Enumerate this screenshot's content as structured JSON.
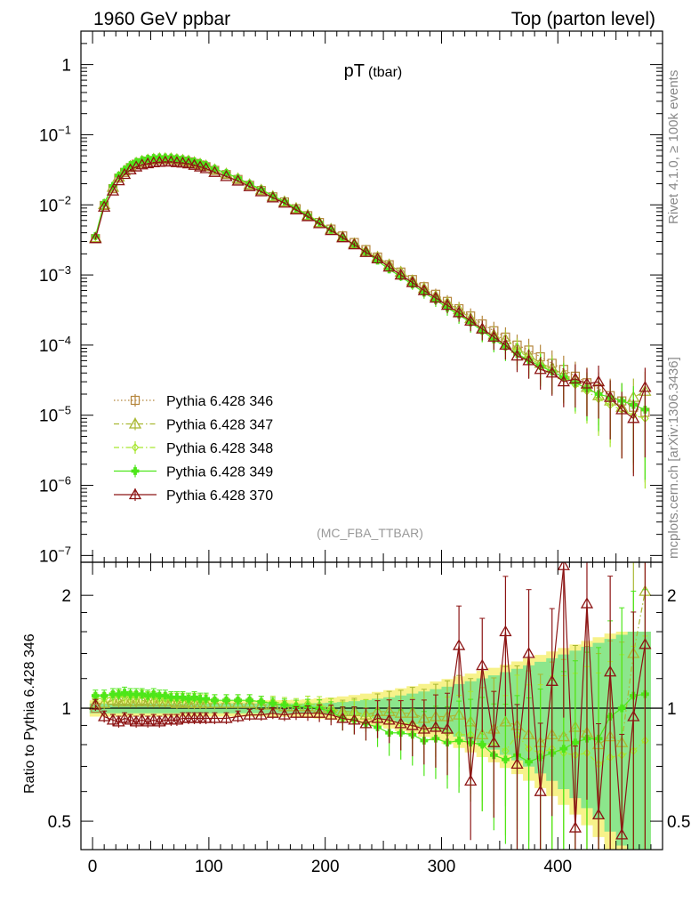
{
  "header": {
    "left": "1960 GeV ppbar",
    "right": "Top (parton level)"
  },
  "side_labels": {
    "rivet": "Rivet 4.1.0, ≥ 100k events",
    "mcplots": "mcplots.cern.ch [arXiv:1306.3436]"
  },
  "colors": {
    "s346": "#b5863d",
    "s347": "#a9b833",
    "s348": "#a6e62e",
    "s349": "#4de619",
    "s370": "#8c1414",
    "band_yellow": "#f7f28a",
    "band_green": "#8ce68c"
  },
  "chart_data": [
    {
      "type": "line",
      "panel": "main",
      "title": "pT",
      "title_sub": "(tbar)",
      "watermark": "(MC_FBA_TTBAR)",
      "xlabel": "",
      "ylabel": "",
      "xlim": [
        -10,
        490
      ],
      "yscale": "log",
      "ylim": [
        8e-08,
        3
      ],
      "ytick_labels": [
        {
          "base": "1",
          "exp": ""
        },
        {
          "base": "10",
          "exp": "−1"
        },
        {
          "base": "10",
          "exp": "−2"
        },
        {
          "base": "10",
          "exp": "−3"
        },
        {
          "base": "10",
          "exp": "−4"
        },
        {
          "base": "10",
          "exp": "−5"
        },
        {
          "base": "10",
          "exp": "−6"
        },
        {
          "base": "10",
          "exp": "−7"
        }
      ],
      "x": [
        2.5,
        10,
        17.5,
        22.5,
        27.5,
        32.5,
        37.5,
        42.5,
        47.5,
        52.5,
        57.5,
        62.5,
        67.5,
        72.5,
        77.5,
        82.5,
        87.5,
        92.5,
        97.5,
        105,
        115,
        125,
        135,
        145,
        155,
        165,
        175,
        185,
        195,
        205,
        215,
        225,
        235,
        245,
        255,
        265,
        275,
        285,
        295,
        305,
        315,
        325,
        335,
        345,
        355,
        365,
        375,
        385,
        395,
        405,
        415,
        425,
        435,
        445,
        455,
        465,
        475
      ],
      "series": [
        {
          "name": "Pythia 6.428 346",
          "marker": "square-open",
          "style": "dotted",
          "values": [
            0.0033,
            0.0098,
            0.017,
            0.024,
            0.029,
            0.034,
            0.038,
            0.04,
            0.042,
            0.043,
            0.044,
            0.044,
            0.044,
            0.043,
            0.042,
            0.041,
            0.039,
            0.037,
            0.035,
            0.031,
            0.027,
            0.023,
            0.019,
            0.016,
            0.013,
            0.011,
            0.0088,
            0.007,
            0.0056,
            0.0045,
            0.0036,
            0.0029,
            0.0023,
            0.0018,
            0.0014,
            0.0011,
            0.00086,
            0.00068,
            0.00053,
            0.00042,
            0.00033,
            0.00026,
            0.0002,
            0.00016,
            0.00013,
            0.0001,
            8.5e-05,
            6.8e-05,
            5.5e-05,
            4.5e-05,
            3.6e-05,
            2.9e-05,
            2.4e-05,
            1.9e-05,
            1.6e-05,
            1.3e-05,
            1.1e-05
          ]
        },
        {
          "name": "Pythia 6.428 347",
          "marker": "triangle-open",
          "style": "dashdot",
          "values": [
            0.0034,
            0.0101,
            0.0178,
            0.025,
            0.0305,
            0.0355,
            0.0395,
            0.042,
            0.0438,
            0.0449,
            0.0458,
            0.0458,
            0.0456,
            0.0445,
            0.0435,
            0.0423,
            0.0403,
            0.0382,
            0.0361,
            0.0318,
            0.0277,
            0.0236,
            0.0195,
            0.0163,
            0.0132,
            0.0111,
            0.0089,
            0.0071,
            0.0056,
            0.0045,
            0.0035,
            0.0028,
            0.0022,
            0.0018,
            0.0014,
            0.0011,
            0.00083,
            0.00064,
            0.0005,
            0.0004,
            0.00032,
            0.00024,
            0.00017,
            0.00014,
            0.00012,
            9e-05,
            7.2e-05,
            5.5e-05,
            4.7e-05,
            3.8e-05,
            3.2e-05,
            2.5e-05,
            1.9e-05,
            1.6e-05,
            1.3e-05,
            1.8e-05,
            2.2e-05
          ]
        },
        {
          "name": "Pythia 6.428 348",
          "marker": "diamond-open",
          "style": "dashdot",
          "values": [
            0.0035,
            0.0104,
            0.0182,
            0.0258,
            0.0313,
            0.0365,
            0.0405,
            0.043,
            0.0448,
            0.0459,
            0.0468,
            0.0468,
            0.0466,
            0.0455,
            0.0444,
            0.0432,
            0.0412,
            0.039,
            0.0368,
            0.0325,
            0.0283,
            0.0241,
            0.0199,
            0.0166,
            0.0135,
            0.0113,
            0.009,
            0.0072,
            0.0057,
            0.0045,
            0.0035,
            0.0028,
            0.0022,
            0.0017,
            0.0013,
            0.001,
            0.00078,
            0.0006,
            0.00047,
            0.00036,
            0.00028,
            0.00022,
            0.00016,
            0.00013,
            0.0001,
            8.5e-05,
            6.6e-05,
            5.2e-05,
            4.3e-05,
            3.4e-05,
            2.7e-05,
            2.2e-05,
            1.7e-05,
            1.4e-05,
            1.2e-05,
            1e-05,
            9e-06
          ]
        },
        {
          "name": "Pythia 6.428 349",
          "marker": "plus-filled",
          "style": "solid",
          "values": [
            0.0036,
            0.0106,
            0.0186,
            0.0262,
            0.0318,
            0.037,
            0.041,
            0.0436,
            0.0454,
            0.0466,
            0.0474,
            0.0474,
            0.0472,
            0.046,
            0.0449,
            0.0436,
            0.0416,
            0.0394,
            0.0371,
            0.0327,
            0.0284,
            0.0241,
            0.0199,
            0.0166,
            0.0134,
            0.0112,
            0.0089,
            0.0071,
            0.0056,
            0.0044,
            0.0034,
            0.0027,
            0.0021,
            0.0016,
            0.0012,
            0.00095,
            0.00073,
            0.00056,
            0.00044,
            0.00034,
            0.00027,
            0.00021,
            0.00016,
            0.00012,
            9.5e-05,
            7.5e-05,
            6.1e-05,
            5e-05,
            4.2e-05,
            3.5e-05,
            2.9e-05,
            2.4e-05,
            2e-05,
            1.8e-05,
            1.6e-05,
            1.4e-05,
            1.2e-05
          ]
        },
        {
          "name": "Pythia 6.428 370",
          "marker": "triangle-open",
          "style": "solid",
          "values": [
            0.0033,
            0.0093,
            0.0158,
            0.0221,
            0.0272,
            0.0316,
            0.0348,
            0.0372,
            0.0386,
            0.0399,
            0.0405,
            0.0409,
            0.041,
            0.0401,
            0.0395,
            0.0385,
            0.0367,
            0.0348,
            0.0329,
            0.0291,
            0.0254,
            0.0219,
            0.0182,
            0.0154,
            0.0126,
            0.0106,
            0.0085,
            0.0068,
            0.0054,
            0.0043,
            0.0034,
            0.0027,
            0.0021,
            0.0017,
            0.0013,
            0.001,
            0.00078,
            0.0006,
            0.00047,
            0.00037,
            0.00029,
            0.00022,
            0.00017,
            0.00013,
            0.0001,
            7e-05,
            6e-05,
            4.5e-05,
            4e-05,
            3e-05,
            3.3e-05,
            2.8e-05,
            3e-05,
            1.8e-05,
            1.2e-05,
            9e-06,
            2.5e-05
          ]
        }
      ]
    },
    {
      "type": "line",
      "panel": "ratio",
      "xlabel": "",
      "ylabel": "Ratio to Pythia 6.428 346",
      "xlim": [
        -10,
        490
      ],
      "yscale": "log",
      "ylim": [
        0.42,
        2.45
      ],
      "ytick_labels": [
        "0.5",
        "1",
        "2"
      ],
      "xtick_labels": [
        "0",
        "100",
        "200",
        "300",
        "400"
      ],
      "x": [
        2.5,
        10,
        17.5,
        22.5,
        27.5,
        32.5,
        37.5,
        42.5,
        47.5,
        52.5,
        57.5,
        62.5,
        67.5,
        72.5,
        77.5,
        82.5,
        87.5,
        92.5,
        97.5,
        105,
        115,
        125,
        135,
        145,
        155,
        165,
        175,
        185,
        195,
        205,
        215,
        225,
        235,
        245,
        255,
        265,
        275,
        285,
        295,
        305,
        315,
        325,
        335,
        345,
        355,
        365,
        375,
        385,
        395,
        405,
        415,
        425,
        435,
        445,
        455,
        465,
        475
      ],
      "series": [
        {
          "name": "Pythia 6.428 347",
          "values": [
            1.03,
            1.03,
            1.05,
            1.04,
            1.05,
            1.04,
            1.04,
            1.05,
            1.04,
            1.04,
            1.04,
            1.04,
            1.04,
            1.03,
            1.04,
            1.03,
            1.03,
            1.03,
            1.03,
            1.03,
            1.03,
            1.03,
            1.03,
            1.02,
            1.02,
            1.01,
            1.01,
            1.01,
            1.0,
            1.0,
            0.98,
            0.98,
            0.96,
            0.98,
            0.98,
            0.97,
            0.97,
            0.94,
            0.95,
            0.95,
            0.96,
            0.92,
            0.85,
            0.88,
            0.92,
            0.9,
            0.85,
            0.81,
            0.85,
            0.84,
            0.89,
            0.86,
            0.8,
            0.84,
            0.81,
            1.4,
            2.05
          ]
        },
        {
          "name": "Pythia 6.428 348",
          "values": [
            1.06,
            1.06,
            1.07,
            1.08,
            1.07,
            1.07,
            1.07,
            1.08,
            1.07,
            1.07,
            1.06,
            1.06,
            1.06,
            1.06,
            1.06,
            1.05,
            1.06,
            1.05,
            1.05,
            1.05,
            1.05,
            1.05,
            1.05,
            1.04,
            1.04,
            1.03,
            1.02,
            1.03,
            1.02,
            1.0,
            0.97,
            0.97,
            0.96,
            0.94,
            0.93,
            0.91,
            0.91,
            0.88,
            0.89,
            0.86,
            0.85,
            0.85,
            0.8,
            0.81,
            0.77,
            0.85,
            0.78,
            0.76,
            0.78,
            0.76,
            0.75,
            0.76,
            0.71,
            0.74,
            0.75,
            0.77,
            0.82
          ]
        },
        {
          "name": "Pythia 6.428 349",
          "values": [
            1.08,
            1.08,
            1.09,
            1.09,
            1.1,
            1.09,
            1.09,
            1.09,
            1.08,
            1.09,
            1.08,
            1.08,
            1.07,
            1.07,
            1.07,
            1.06,
            1.07,
            1.06,
            1.06,
            1.05,
            1.05,
            1.05,
            1.05,
            1.04,
            1.03,
            1.02,
            1.01,
            1.01,
            1.0,
            0.98,
            0.94,
            0.93,
            0.91,
            0.89,
            0.86,
            0.86,
            0.85,
            0.82,
            0.83,
            0.81,
            0.82,
            0.81,
            0.8,
            0.75,
            0.73,
            0.75,
            0.72,
            0.74,
            0.76,
            0.78,
            0.81,
            0.83,
            0.83,
            0.95,
            1.0,
            1.08,
            1.09
          ]
        },
        {
          "name": "Pythia 6.428 370",
          "values": [
            1.02,
            0.95,
            0.93,
            0.92,
            0.94,
            0.93,
            0.92,
            0.93,
            0.92,
            0.93,
            0.92,
            0.93,
            0.93,
            0.93,
            0.94,
            0.94,
            0.94,
            0.94,
            0.94,
            0.94,
            0.94,
            0.95,
            0.96,
            0.96,
            0.97,
            0.96,
            0.97,
            0.97,
            0.97,
            0.96,
            0.94,
            0.93,
            0.91,
            0.94,
            0.93,
            0.91,
            0.9,
            0.88,
            0.89,
            0.88,
            1.47,
            0.64,
            1.3,
            0.81,
            1.6,
            0.71,
            1.4,
            0.6,
            1.18,
            2.4,
            0.48,
            1.9,
            0.52,
            1.25,
            0.46,
            0.95,
            1.48
          ]
        }
      ]
    }
  ]
}
